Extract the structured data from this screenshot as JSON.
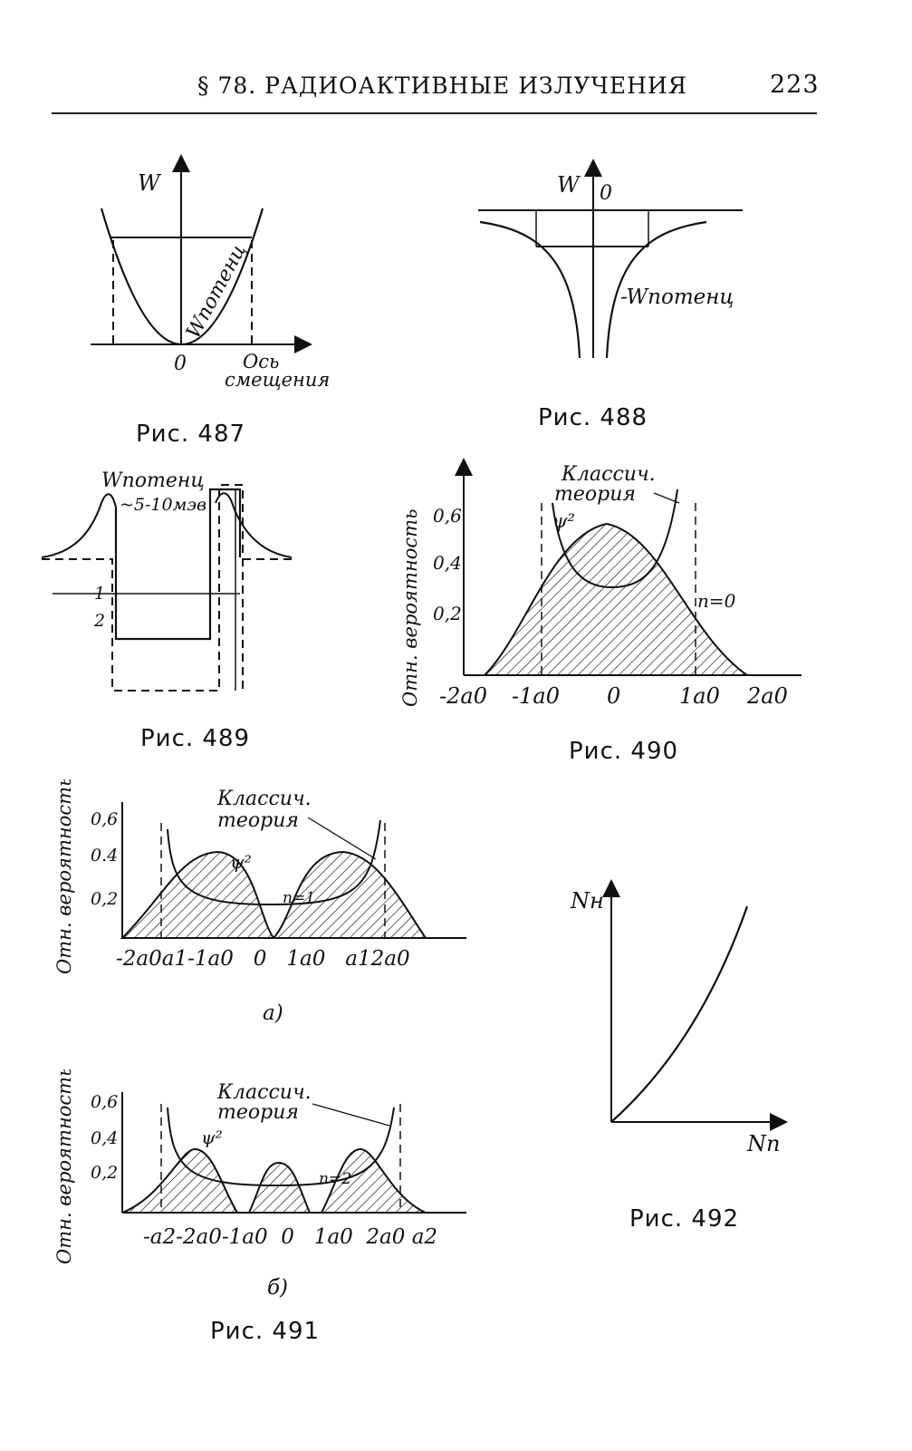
{
  "header": {
    "section": "§ 78. РАДИОАКТИВНЫЕ ИЗЛУЧЕНИЯ",
    "page_number": "223"
  },
  "fig487": {
    "caption": "Рис. 487",
    "y_axis": "W",
    "curve": "Wпотенц",
    "origin": "0",
    "x_axis_line1": "Ось",
    "x_axis_line2": "смещения"
  },
  "fig488": {
    "caption": "Рис. 488",
    "y_axis": "W",
    "zero": "0",
    "curve": "-Wпотенц"
  },
  "fig489": {
    "caption": "Рис. 489",
    "curve": "Wпотенц",
    "energy": "~5-10мэв",
    "label1": "1",
    "label2": "2"
  },
  "fig490": {
    "caption": "Рис. 490",
    "y_axis": "Отн. вероятность",
    "classic_line1": "Классич.",
    "classic_line2": "теория",
    "psi": "ψ²",
    "n": "n=0",
    "y_ticks": [
      "0,6",
      "0,4",
      "0,2"
    ],
    "x_ticks": [
      "-2a0",
      "-1a0",
      "0",
      "1a0",
      "2a0"
    ]
  },
  "fig491": {
    "caption": "Рис. 491",
    "a": {
      "sublabel": "а)",
      "y_axis": "Отн. вероятность",
      "classic_line1": "Классич.",
      "classic_line2": "теория",
      "psi": "ψ²",
      "n": "n=1",
      "y_ticks": [
        "0,6",
        "0.4",
        "0,2"
      ],
      "x_ticks": "-2a0a1-1a0   0   1a0   a12a0"
    },
    "b": {
      "sublabel": "б)",
      "y_axis": "Отн. вероятность",
      "classic_line1": "Классич.",
      "classic_line2": "теория",
      "psi": "ψ²",
      "n": "n=2",
      "y_ticks": [
        "0,6",
        "0,4",
        "0,2"
      ],
      "x_ticks": "-a2-2a0-1a0  0   1a0  2a0 a2"
    }
  },
  "fig492": {
    "caption": "Рис. 492",
    "y_axis": "Nн",
    "x_axis": "Nп"
  }
}
